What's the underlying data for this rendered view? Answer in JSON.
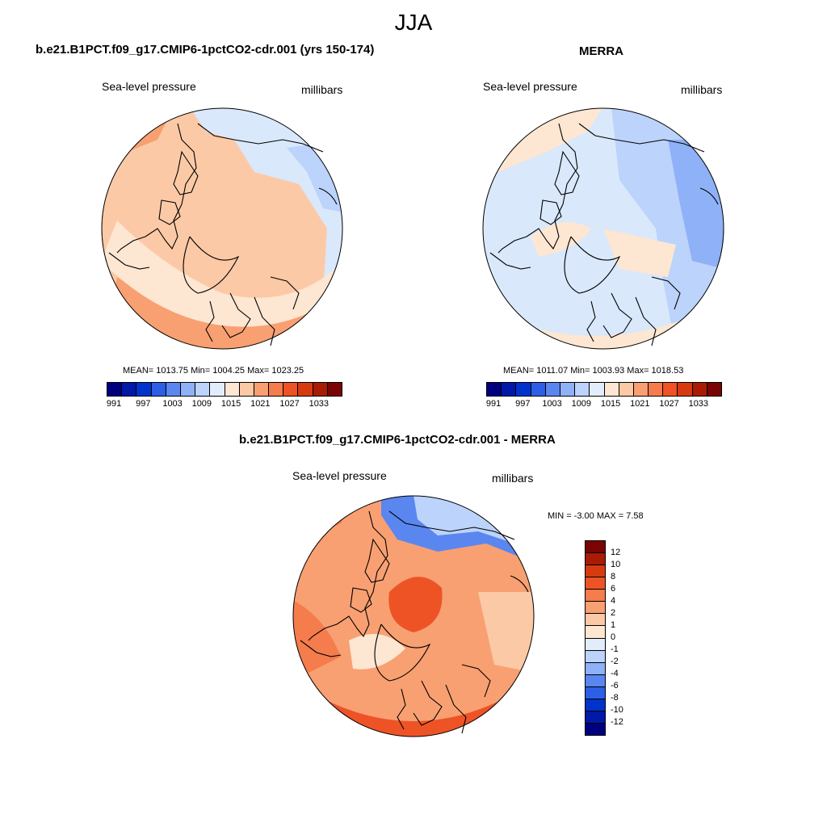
{
  "season": "JJA",
  "legend_colors": [
    "#00007f",
    "#0019a8",
    "#0033cc",
    "#2d5ee6",
    "#5a86f0",
    "#8fb1f7",
    "#bcd3fb",
    "#e2edfc",
    "#fde6d2",
    "#fcc9a6",
    "#f8a072",
    "#f57c4c",
    "#ee5326",
    "#d63b10",
    "#a81c05",
    "#7a0403"
  ],
  "diff_colors": [
    "#00007f",
    "#0019a8",
    "#0033cc",
    "#2d5ee6",
    "#5a86f0",
    "#8fb1f7",
    "#bcd3fb",
    "#e2edfc",
    "#fde6d2",
    "#fcc9a6",
    "#f8a072",
    "#f57c4c",
    "#ee5326",
    "#d63b10",
    "#a81c05",
    "#7a0403"
  ],
  "panels": [
    {
      "title": "b.e21.B1PCT.f09_g17.CMIP6-1pctCO2-cdr.001 (yrs 150-174)",
      "variable": "Sea-level pressure",
      "units": "millibars",
      "stats": "MEAN= 1013.75  Min= 1004.25  Max= 1023.25",
      "field_colors": [
        "#fde6d2",
        "#fcc9a6",
        "#f8a072",
        "#d9e8fb",
        "#bcd3fb",
        "#8fb1f7"
      ],
      "colorbar_ticks": [
        "991",
        "997",
        "1003",
        "1009",
        "1015",
        "1021",
        "1027",
        "1033"
      ]
    },
    {
      "title": "MERRA",
      "variable": "Sea-level pressure",
      "units": "millibars",
      "stats": "MEAN= 1011.07  Min= 1003.93  Max= 1018.53",
      "field_colors": [
        "#d9e8fb",
        "#bcd3fb",
        "#8fb1f7",
        "#fde6d2",
        "#fcc9a6",
        "#f8a072"
      ],
      "colorbar_ticks": [
        "991",
        "997",
        "1003",
        "1009",
        "1015",
        "1021",
        "1027",
        "1033"
      ]
    },
    {
      "title": "b.e21.B1PCT.f09_g17.CMIP6-1pctCO2-cdr.001 - MERRA",
      "variable": "Sea-level pressure",
      "units": "millibars",
      "stats": "MIN =  -3.00 MAX =   7.58",
      "field_colors": [
        "#fcc9a6",
        "#f8a072",
        "#f57c4c",
        "#ee5326",
        "#bcd3fb",
        "#5a86f0",
        "#fde6d2"
      ],
      "colorbar_ticks": [
        "12",
        "10",
        "8",
        "6",
        "4",
        "2",
        "1",
        "0",
        "-1",
        "-2",
        "-4",
        "-6",
        "-8",
        "-10",
        "-12"
      ]
    }
  ]
}
